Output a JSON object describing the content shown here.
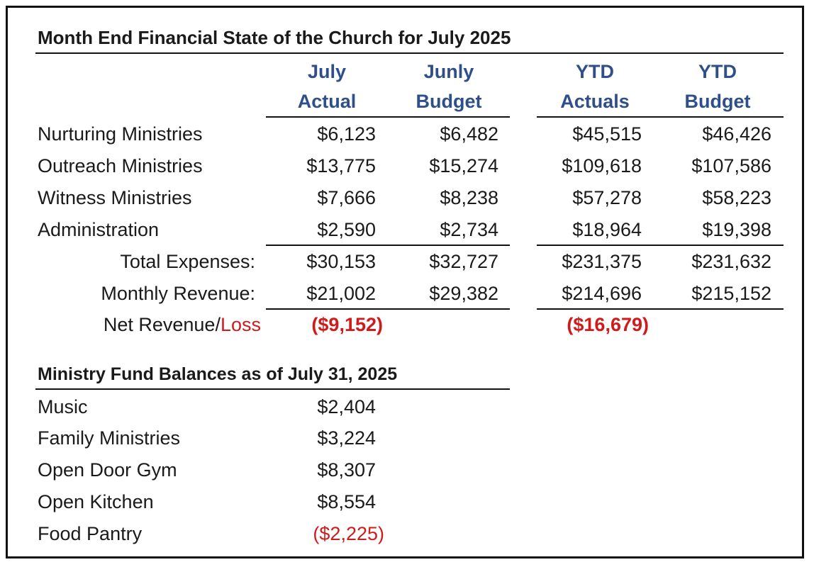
{
  "section1": {
    "title": "Month End Financial State of the Church for July 2025",
    "headers": [
      {
        "line1": "July",
        "line2": "Actual"
      },
      {
        "line1": "Junly",
        "line2": "Budget"
      },
      {
        "line1": "YTD",
        "line2": "Actuals"
      },
      {
        "line1": "YTD",
        "line2": "Budget"
      }
    ],
    "rows": [
      {
        "label": "Nurturing Ministries",
        "values": [
          "$6,123",
          "$6,482",
          "$45,515",
          "$46,426"
        ]
      },
      {
        "label": "Outreach Ministries",
        "values": [
          "$13,775",
          "$15,274",
          "$109,618",
          "$107,586"
        ]
      },
      {
        "label": "Witness Ministries",
        "values": [
          "$7,666",
          "$8,238",
          "$57,278",
          "$58,223"
        ]
      },
      {
        "label": "Administration",
        "values": [
          "$2,590",
          "$2,734",
          "$18,964",
          "$19,398"
        ]
      }
    ],
    "total_expenses": {
      "label": "Total Expenses:",
      "values": [
        "$30,153",
        "$32,727",
        "$231,375",
        "$231,632"
      ]
    },
    "monthly_revenue": {
      "label": "Monthly Revenue:",
      "values": [
        "$21,002",
        "$29,382",
        "$214,696",
        "$215,152"
      ]
    },
    "net": {
      "label_part1": "Net Revenue/",
      "label_part2": "Loss",
      "july_actual": "($9,152)",
      "ytd_actuals": "($16,679)"
    },
    "colors": {
      "header": "#2f4f8a",
      "negative": "#d11a1a"
    }
  },
  "section2": {
    "title": "Ministry Fund Balances as of July 31, 2025",
    "rows": [
      {
        "label": "Music",
        "value": "$2,404"
      },
      {
        "label": "Family Ministries",
        "value": "$3,224"
      },
      {
        "label": "Open Door Gym",
        "value": "$8,307"
      },
      {
        "label": "Open Kitchen",
        "value": "$8,554"
      },
      {
        "label": "Food Pantry",
        "value": "($2,225)"
      }
    ]
  }
}
